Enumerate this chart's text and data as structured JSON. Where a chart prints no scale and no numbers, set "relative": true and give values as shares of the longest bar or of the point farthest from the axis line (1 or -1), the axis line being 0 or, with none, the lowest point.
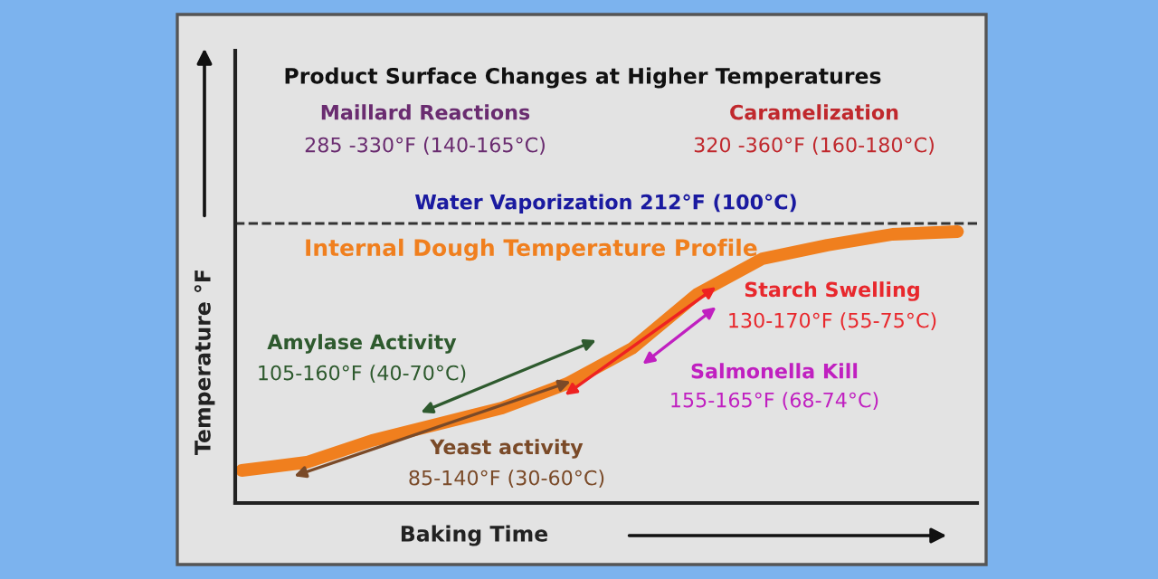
{
  "chart_data": {
    "type": "line",
    "title": "Product Surface Changes at Higher Temperatures",
    "xlabel": "Baking Time",
    "ylabel": "Temperature °F",
    "relative": true,
    "categories": [
      null,
      null,
      null,
      null,
      null,
      null,
      null,
      null,
      null,
      null,
      null,
      null
    ],
    "series": [
      {
        "name": "Internal Dough Temperature Profile",
        "color": "#f07f1e",
        "values": [
          0.12,
          0.15,
          0.23,
          0.29,
          0.35,
          0.44,
          0.57,
          0.77,
          0.9,
          0.95,
          0.99,
          1.0
        ]
      }
    ],
    "ref_lines": [
      {
        "axis": "y",
        "value": 1.03,
        "label": "Water Vaporization 212°F (100°C)",
        "color": "#333333",
        "line_style": "dashed"
      }
    ],
    "annotations": [
      "Maillard Reactions",
      "285 -330°F (140-165°C)",
      "Caramelization",
      "320 -360°F (160-180°C)",
      "Starch Swelling",
      "130-170°F (55-75°C)",
      "Amylase Activity",
      "105-160°F (40-70°C)",
      "Salmonella Kill",
      "155-165°F (68-74°C)",
      "Yeast activity",
      "85-140°F (30-60°C)"
    ],
    "line_style": "solid"
  }
}
